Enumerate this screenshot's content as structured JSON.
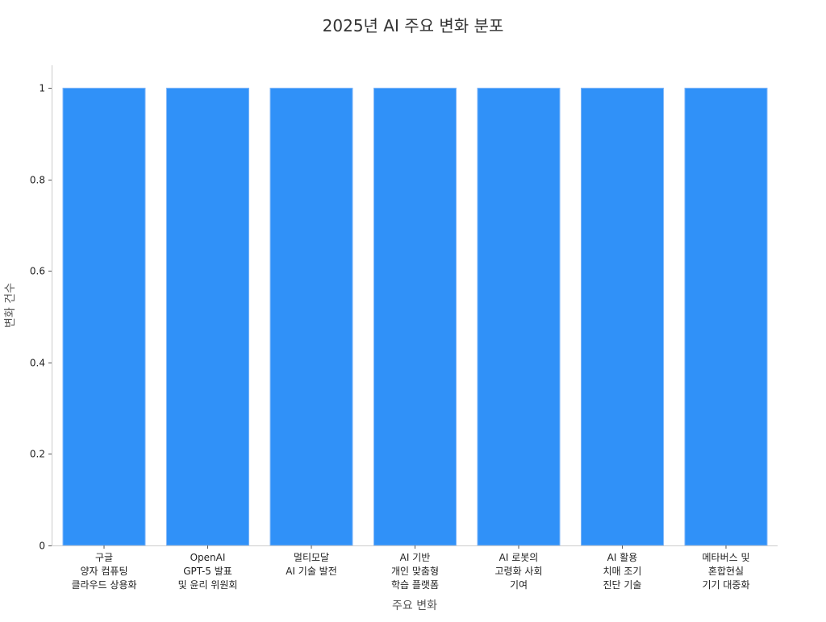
{
  "chart_data": {
    "type": "bar",
    "title": "2025년 AI 주요 변화 분포",
    "xlabel": "주요 변화",
    "ylabel": "변화 건수",
    "categories": [
      "구글\n양자 컴퓨팅\n클라우드 상용화",
      "OpenAI\nGPT-5 발표\n및 윤리 위원회",
      "멀티모달\nAI 기술 발전",
      "AI 기반\n개인 맞춤형\n학습 플랫폼",
      "AI 로봇의\n고령화 사회\n기여",
      "AI 활용\n치매 조기\n진단 기술",
      "메타버스 및\n혼합현실\n기기 대중화"
    ],
    "values": [
      1,
      1,
      1,
      1,
      1,
      1,
      1
    ],
    "ylim": [
      0,
      1.05
    ],
    "yticks": [
      0,
      0.2,
      0.4,
      0.6,
      0.8,
      1
    ],
    "ytick_labels": [
      "0",
      "0.2",
      "0.4",
      "0.6",
      "0.8",
      "1"
    ],
    "grid": false,
    "colors": {
      "bar": "#3091F8",
      "bar_edge": "#7FB6F8",
      "axis": "#CCCCCC"
    }
  }
}
